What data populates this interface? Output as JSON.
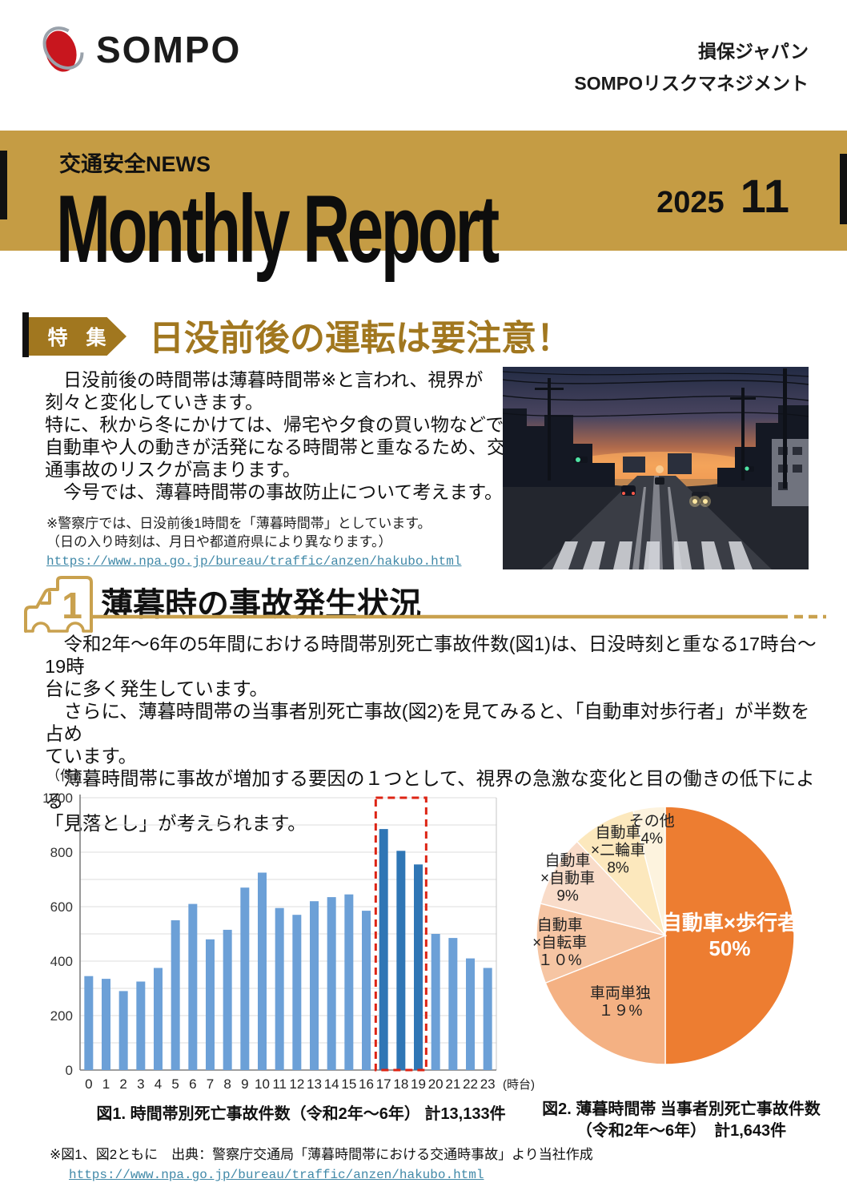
{
  "header": {
    "logo_text": "SOMPO",
    "company_line1": "損保ジャパン",
    "company_line2": "SOMPOリスクマネジメント"
  },
  "banner": {
    "kicker": "交通安全NEWS",
    "title": "Monthly Report",
    "year": "2025",
    "month": "11"
  },
  "feature": {
    "badge": "特 集",
    "title": "日没前後の運転は要注意！",
    "body": "　日没前後の時間帯は薄暮時間帯※と言われ、視界が\n刻々と変化していきます。\n特に、秋から冬にかけては、帰宅や夕食の買い物などで\n自動車や人の動きが活発になる時間帯と重なるため、交\n通事故のリスクが高まります。\n　今号では、薄暮時間帯の事故防止について考えます。",
    "note": "※警察庁では、日没前後1時間を「薄暮時間帯」としています。\n（日の入り時刻は、月日や都道府県により異なります。）",
    "note_link": "https://www.npa.go.jp/bureau/traffic/anzen/hakubo.html"
  },
  "section1": {
    "number": "1",
    "title": "薄暮時の事故発生状況",
    "body": "　令和2年～6年の5年間における時間帯別死亡事故件数(図1)は、日没時刻と重なる17時台～19時\n台に多く発生しています。\n　さらに、薄暮時間帯の当事者別死亡事故(図2)を見てみると、「自動車対歩行者」が半数を占め\nています。\n　薄暮時間帯に事故が増加する要因の１つとして、視界の急激な変化と目の働きの低下による\n「見落とし」が考えられます。"
  },
  "chart_data": [
    {
      "type": "bar",
      "title": "図1. 時間帯別死亡事故件数（令和2年～6年） 計13,133件",
      "categories": [
        "0",
        "1",
        "2",
        "3",
        "4",
        "5",
        "6",
        "7",
        "8",
        "9",
        "10",
        "11",
        "12",
        "13",
        "14",
        "15",
        "16",
        "17",
        "18",
        "19",
        "20",
        "21",
        "22",
        "23"
      ],
      "values": [
        345,
        335,
        290,
        325,
        375,
        550,
        610,
        480,
        515,
        670,
        725,
        595,
        570,
        620,
        635,
        645,
        585,
        885,
        805,
        755,
        500,
        485,
        410,
        375
      ],
      "ylabel": "（件）",
      "x_unit_label": "(時台)",
      "ylim": [
        0,
        1000
      ],
      "ytick_step": 200,
      "grid_step": 100,
      "bar_color": "#6CA0D7",
      "highlight_color": "#2F76B5",
      "highlight_categories": [
        "17",
        "18",
        "19"
      ],
      "highlight_box_color": "#DD2414",
      "grid": true
    },
    {
      "type": "pie",
      "title": "図2. 薄暮時間帯 当事者別死亡事故件数（令和2年～6年） 計1,643件",
      "slices": [
        {
          "label": "自動車×歩行者",
          "pct": 50,
          "color": "#ED7D31",
          "text_color": "#FFFFFF",
          "label_lines": [
            "自動車×歩行者",
            "50%"
          ]
        },
        {
          "label": "車両単独",
          "pct": 19,
          "color": "#F4B183",
          "text_color": "#222222",
          "label_lines": [
            "車両単独",
            "１９%"
          ]
        },
        {
          "label": "自動車×自転車",
          "pct": 10,
          "color": "#F6C5A3",
          "text_color": "#222222",
          "label_lines": [
            "自動車",
            "×自転車",
            "１０%"
          ]
        },
        {
          "label": "自動車×自動車",
          "pct": 9,
          "color": "#F9DCC9",
          "text_color": "#222222",
          "label_lines": [
            "自動車",
            "×自動車",
            "9%"
          ]
        },
        {
          "label": "自動車×二輪車",
          "pct": 8,
          "color": "#FCE8BD",
          "text_color": "#222222",
          "label_lines": [
            "自動車",
            "×二輪車",
            "8%"
          ]
        },
        {
          "label": "その他",
          "pct": 4,
          "color": "#FDF3DE",
          "text_color": "#222222",
          "label_lines": [
            "その他",
            "4%"
          ]
        }
      ],
      "legend": "labels-inside"
    }
  ],
  "figures": {
    "fig1_caption": "図1. 時間帯別死亡事故件数（令和2年～6年） 計13,133件",
    "fig2_caption": "図2. 薄暮時間帯 当事者別死亡事故件数\n（令和2年～6年）　計1,643件",
    "source_note": "※図1、図2ともに　出典：警察庁交通局「薄暮時間帯における交通時事故」より当社作成",
    "source_link": "https://www.npa.go.jp/bureau/traffic/anzen/hakubo.html"
  },
  "colors": {
    "banner_gold": "#C59C44",
    "badge_gold": "#A1771F",
    "rule_gold": "#C9A14E",
    "link_teal": "#4189A8",
    "bar_blue": "#6CA0D7",
    "bar_blue_dark": "#2F76B5",
    "highlight_red": "#DD2414",
    "pie_orange": "#ED7D31"
  }
}
